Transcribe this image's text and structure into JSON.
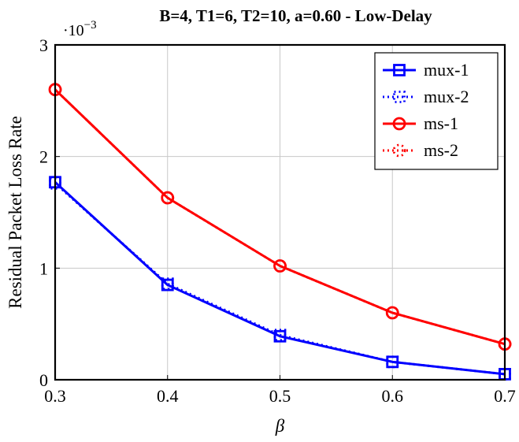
{
  "chart_data": {
    "type": "line",
    "title": "B=4, T1=6, T2=10, a=0.60 - Low-Delay",
    "xlabel": "β",
    "ylabel": "Residual Packet Loss Rate",
    "y_multiplier": "·10",
    "y_exponent": "−3",
    "xlim": [
      0.3,
      0.7
    ],
    "ylim": [
      0,
      3
    ],
    "xticks": [
      "0.3",
      "0.4",
      "0.5",
      "0.6",
      "0.7"
    ],
    "yticks": [
      "0",
      "1",
      "2",
      "3"
    ],
    "grid": true,
    "legend_position": "top-right",
    "x": [
      0.3,
      0.4,
      0.5,
      0.6,
      0.7
    ],
    "series": [
      {
        "name": "mux-1",
        "values": [
          1.77,
          0.85,
          0.39,
          0.16,
          0.05
        ],
        "color": "#0000ff",
        "marker": "square",
        "dash": "solid"
      },
      {
        "name": "mux-2",
        "values": [
          1.76,
          0.86,
          0.4,
          0.16,
          0.05
        ],
        "color": "#0000ff",
        "marker": "square",
        "dash": "dotted"
      },
      {
        "name": "ms-1",
        "values": [
          2.6,
          1.63,
          1.02,
          0.6,
          0.32
        ],
        "color": "#ff0000",
        "marker": "circle",
        "dash": "solid"
      },
      {
        "name": "ms-2",
        "values": [
          2.6,
          1.63,
          1.02,
          0.6,
          0.32
        ],
        "color": "#ff0000",
        "marker": "circle",
        "dash": "dotted"
      }
    ]
  }
}
